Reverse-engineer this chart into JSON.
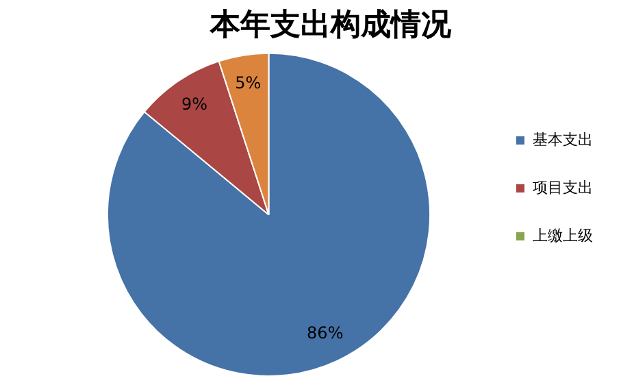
{
  "chart_data": {
    "type": "pie",
    "title": "本年支出构成情况",
    "categories": [
      "基本支出",
      "项目支出",
      "上缴上级",
      null
    ],
    "values": [
      86,
      9,
      0,
      5
    ],
    "colors": [
      "#4572a7",
      "#aa4643",
      "#89a54e",
      "#db843d"
    ],
    "value_labels": [
      "86%",
      "9%",
      null,
      "5%"
    ],
    "legend": "right"
  }
}
